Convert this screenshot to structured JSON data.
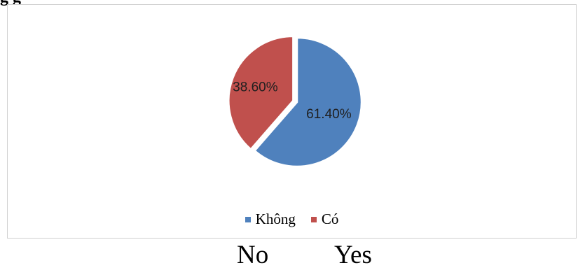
{
  "header_fragment": "g       g",
  "chart_data": {
    "type": "pie",
    "title": "",
    "slices": [
      {
        "name": "Không",
        "value": 61.4,
        "label": "61.40%",
        "color": "#4f81bd"
      },
      {
        "name": "Có",
        "value": 38.6,
        "label": "38.60%",
        "color": "#c0504d"
      }
    ],
    "start_angle": "12 o'clock",
    "direction": "clockwise",
    "legend_position": "bottom"
  },
  "caption": {
    "no_label": "No",
    "yes_label": "Yes"
  }
}
